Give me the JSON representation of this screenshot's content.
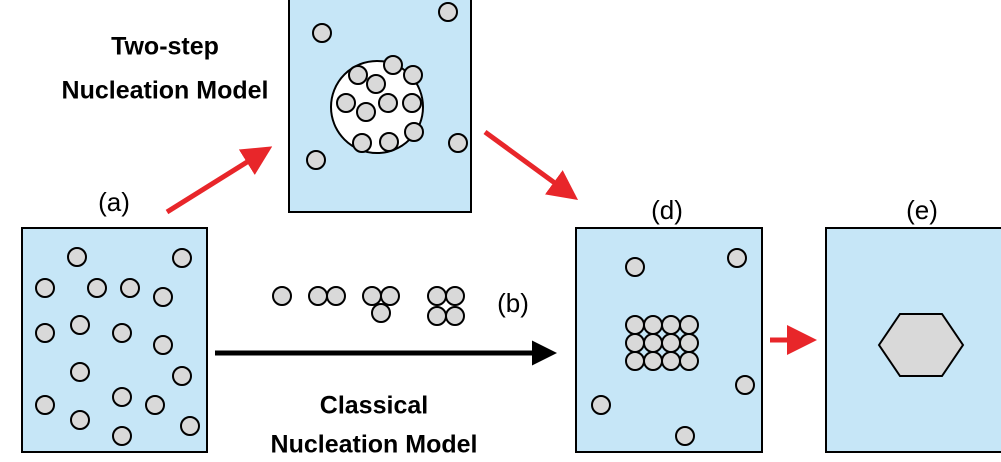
{
  "labels": {
    "a": "(a)",
    "b": "(b)",
    "d": "(d)",
    "e": "(e)"
  },
  "two_step": {
    "line1": "Two-step",
    "line2": "Nucleation Model"
  },
  "classical": {
    "line1": "Classical",
    "line2": "Nucleation Model"
  }
}
